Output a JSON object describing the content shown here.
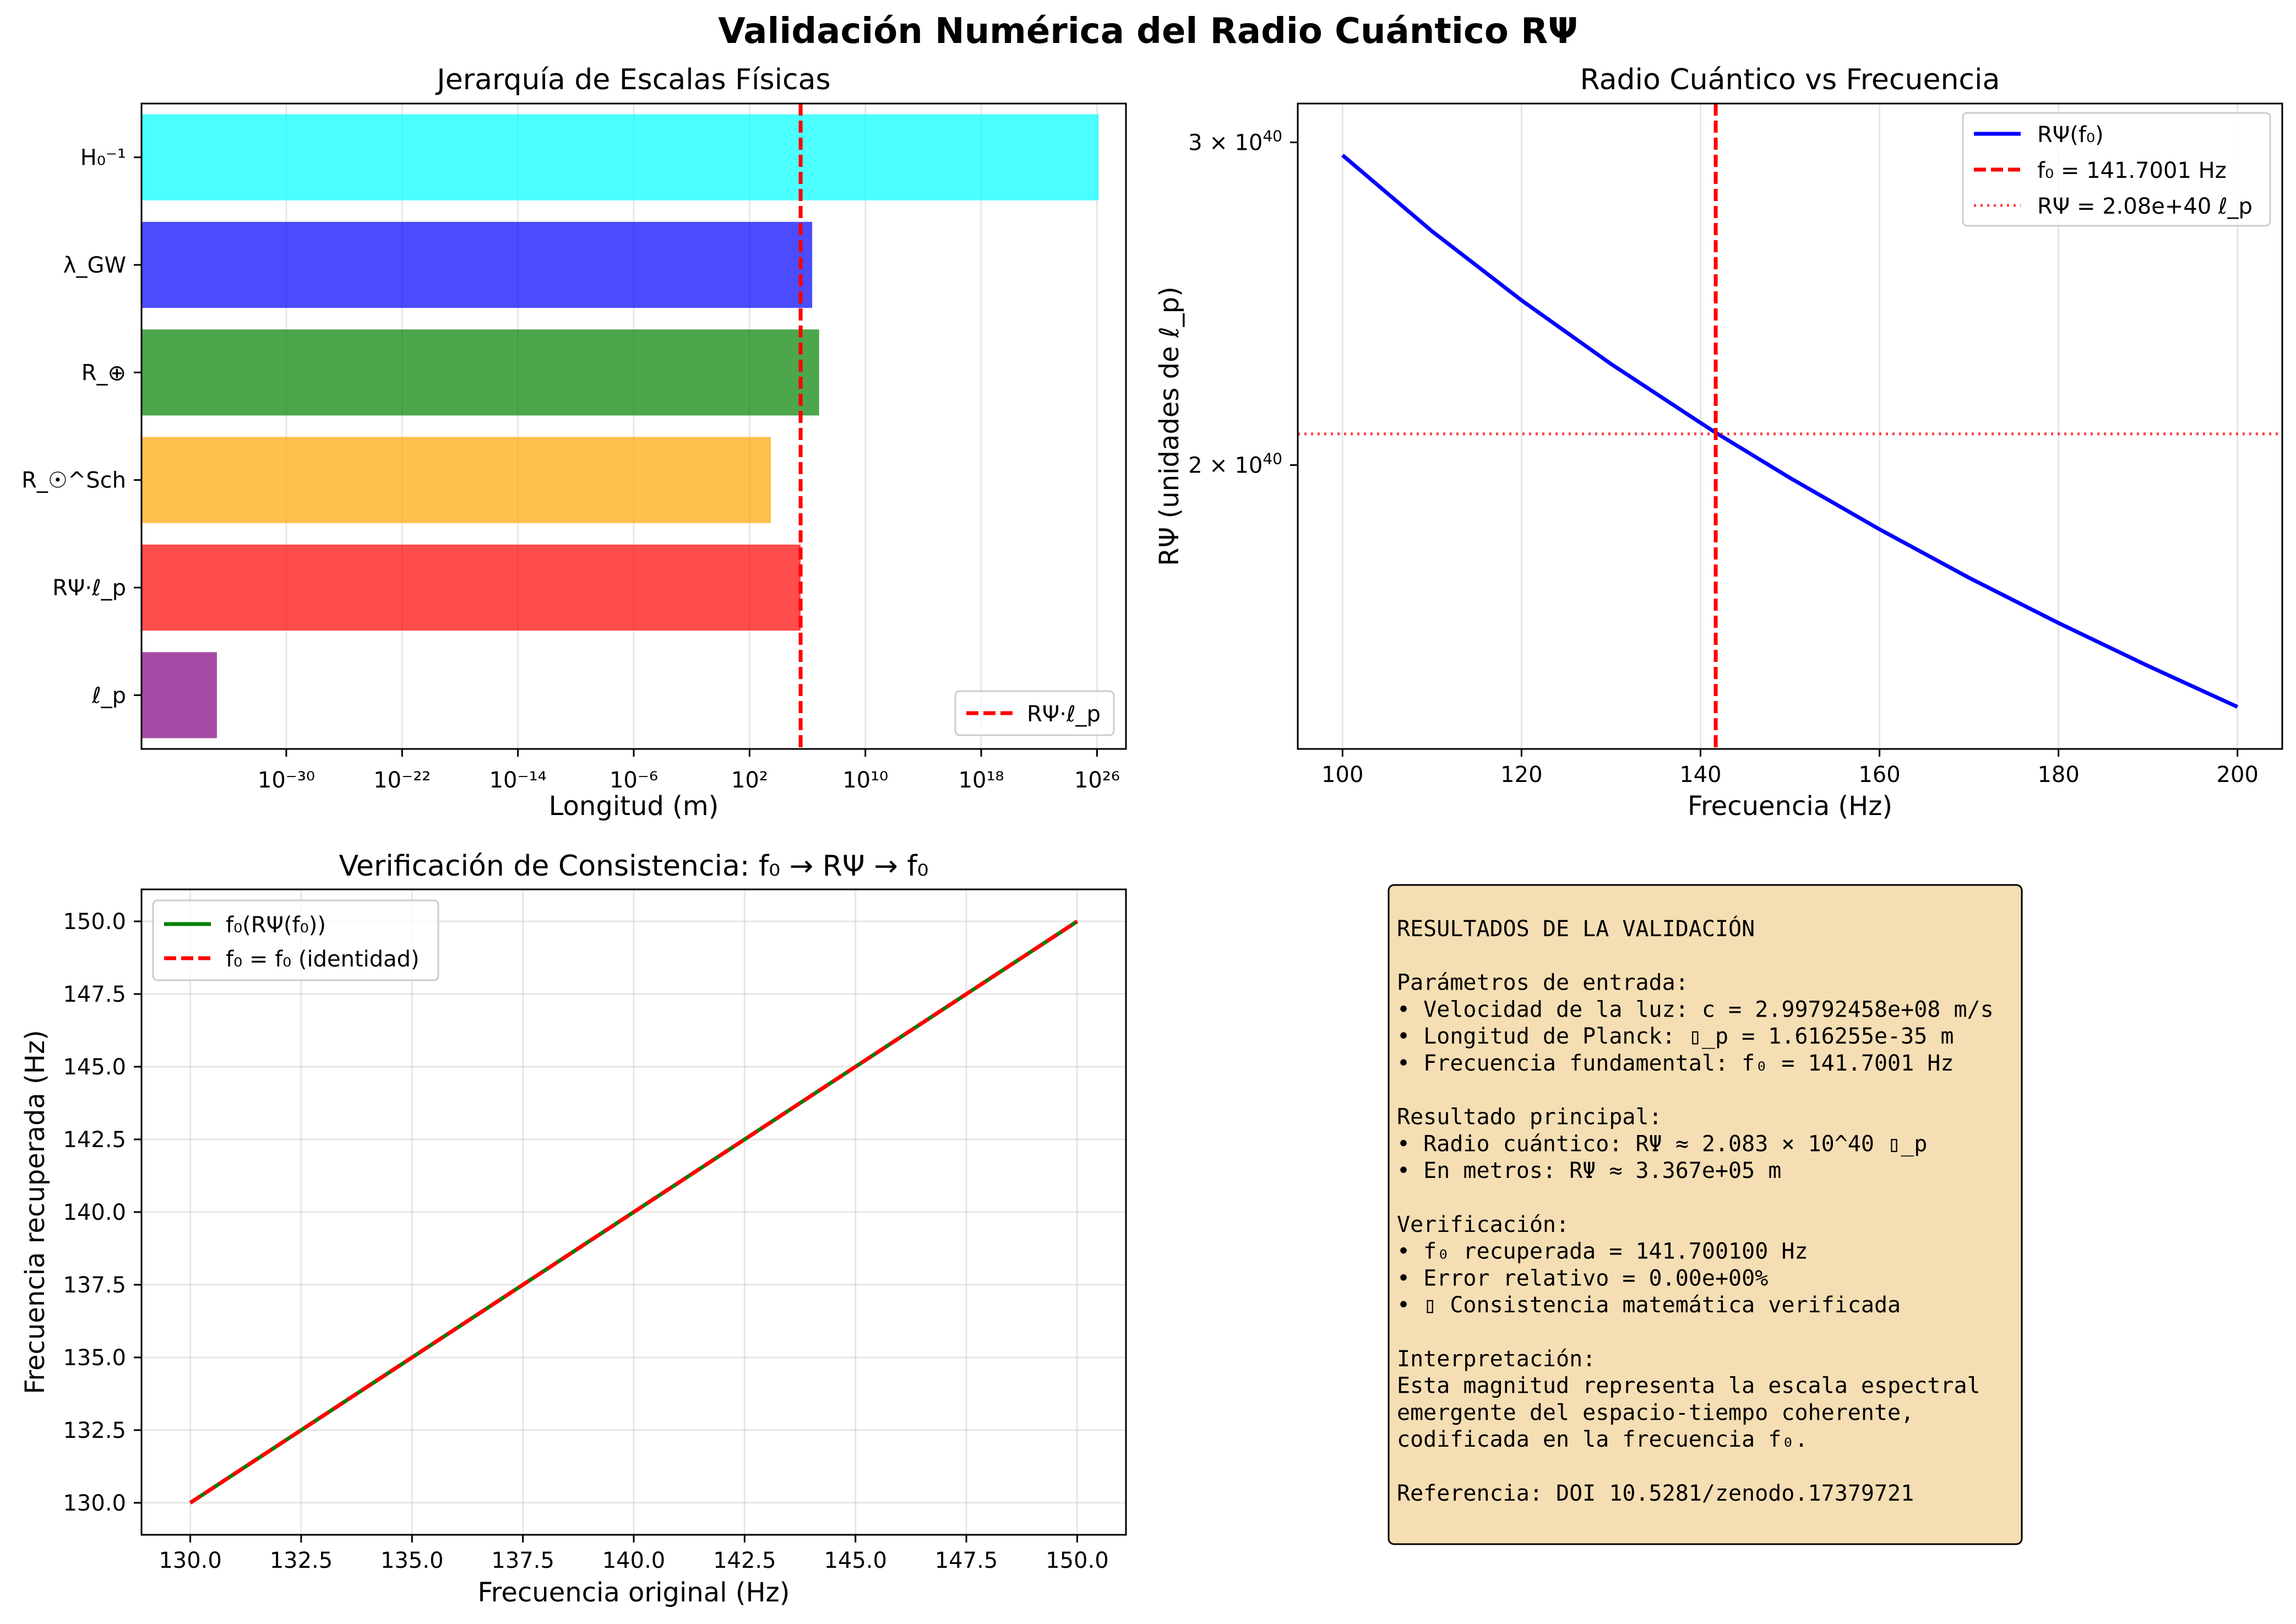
{
  "figure": {
    "suptitle": "Validación Numérica del Radio Cuántico RΨ"
  },
  "colors": {
    "red_dash": "#ff0000",
    "blue_line": "#0000ff",
    "green_line": "#008000",
    "text_box": "#f5deb3"
  },
  "chart_data": [
    {
      "type": "bar",
      "orientation": "horizontal",
      "title": "Jerarquía de Escalas Físicas",
      "xlabel": "Longitud (m)",
      "xscale": "log",
      "xlim_log10": [
        -40,
        28
      ],
      "xticks_log10": [
        -30,
        -22,
        -14,
        -6,
        2,
        10,
        18,
        26
      ],
      "grid": "x",
      "categories": [
        "ℓ_p",
        "RΨ·ℓ_p",
        "R_☉^Sch",
        "R_⊕",
        "λ_GW",
        "H₀⁻¹"
      ],
      "values": [
        1.616255e-35,
        336700,
        2953,
        6371000,
        2115700,
        1.3e+26
      ],
      "bar_colors": [
        "#800080",
        "#ff0000",
        "#ffa500",
        "#008000",
        "#0000ff",
        "#00ffff"
      ],
      "vline": {
        "value": 336700,
        "color": "#ff0000",
        "style": "dashed",
        "label": "RΨ·ℓ_p"
      },
      "legend": "lower-right"
    },
    {
      "type": "line",
      "title": "Radio Cuántico vs Frecuencia",
      "xlabel": "Frecuencia (Hz)",
      "ylabel": "RΨ (unidades de ℓ_p)",
      "yscale": "log",
      "xlim": [
        95,
        205
      ],
      "ylim": [
        1.4e+40,
        3.15e+40
      ],
      "xticks": [
        100,
        120,
        140,
        160,
        180,
        200
      ],
      "yticks": [
        2e+40,
        3e+40
      ],
      "ytick_labels": [
        "2 × 10",
        "3 × 10"
      ],
      "ytick_exp": "40",
      "grid": "x",
      "x": [
        100,
        110,
        120,
        130,
        140,
        141.7001,
        150,
        160,
        170,
        180,
        190,
        200
      ],
      "series": [
        {
          "name": "RΨ(f₀)",
          "color": "#0000ff",
          "style": "solid",
          "values": [
            2.952e+40,
            2.683e+40,
            2.46e+40,
            2.271e+40,
            2.109e+40,
            2.083e+40,
            1.968e+40,
            1.845e+40,
            1.736e+40,
            1.64e+40,
            1.554e+40,
            1.476e+40
          ]
        }
      ],
      "vline": {
        "value": 141.7001,
        "color": "#ff0000",
        "style": "dashed",
        "label": "f₀ = 141.7001 Hz"
      },
      "hline": {
        "value": 2.08e+40,
        "color": "#ff0000",
        "style": "dotted",
        "label": "RΨ = 2.08e+40 ℓ_p"
      },
      "legend": "top-right"
    },
    {
      "type": "line",
      "title": "Verificación de Consistencia: f₀ → RΨ → f₀",
      "xlabel": "Frecuencia original (Hz)",
      "ylabel": "Frecuencia recuperada (Hz)",
      "xlim": [
        128.9,
        151.1
      ],
      "ylim": [
        128.9,
        151.1
      ],
      "xticks": [
        130.0,
        132.5,
        135.0,
        137.5,
        140.0,
        142.5,
        145.0,
        147.5,
        150.0
      ],
      "yticks": [
        130.0,
        132.5,
        135.0,
        137.5,
        140.0,
        142.5,
        145.0,
        147.5,
        150.0
      ],
      "grid": "both",
      "x": [
        130,
        150
      ],
      "series": [
        {
          "name": "f₀(RΨ(f₀))",
          "color": "#008000",
          "style": "solid",
          "values": [
            130,
            150
          ]
        },
        {
          "name": "f₀ = f₀ (identidad)",
          "color": "#ff0000",
          "style": "dashed",
          "values": [
            130,
            150
          ]
        }
      ],
      "legend": "top-left"
    }
  ],
  "results_box": {
    "lines": [
      "RESULTADOS DE LA VALIDACIÓN",
      "",
      "Parámetros de entrada:",
      "• Velocidad de la luz: c = 2.99792458e+08 m/s",
      "• Longitud de Planck: ▯_p = 1.616255e-35 m",
      "• Frecuencia fundamental: f₀ = 141.7001 Hz",
      "",
      "Resultado principal:",
      "• Radio cuántico: RΨ ≈ 2.083 × 10^40 ▯_p",
      "• En metros: RΨ ≈ 3.367e+05 m",
      "",
      "Verificación:",
      "• f₀ recuperada = 141.700100 Hz",
      "• Error relativo = 0.00e+00%",
      "• ▯ Consistencia matemática verificada",
      "",
      "Interpretación:",
      "Esta magnitud representa la escala espectral",
      "emergente del espacio-tiempo coherente,",
      "codificada en la frecuencia f₀.",
      "",
      "Referencia: DOI 10.5281/zenodo.17379721"
    ]
  }
}
